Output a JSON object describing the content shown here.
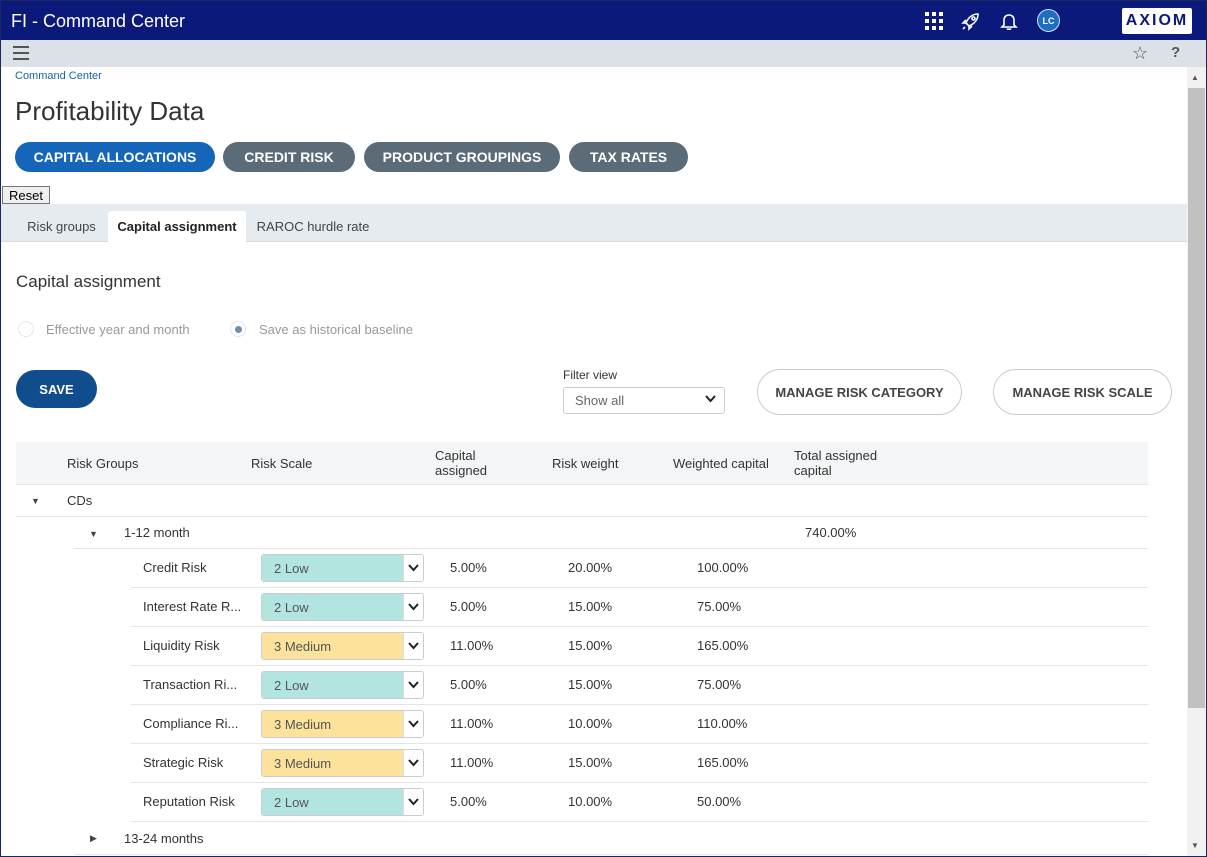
{
  "app": {
    "title": "FI - Command Center",
    "logo": "AXIOM",
    "avatar_initials": "LC"
  },
  "topbar_icons": [
    "apps-grid-icon",
    "rocket-icon",
    "bell-icon"
  ],
  "subbar_icons": [
    "menu-icon",
    "star-icon",
    "help-icon"
  ],
  "breadcrumb": "Command Center",
  "page_title": "Profitability Data",
  "pills": [
    {
      "label": "CAPITAL ALLOCATIONS",
      "active": true
    },
    {
      "label": "CREDIT RISK",
      "active": false
    },
    {
      "label": "PRODUCT GROUPINGS",
      "active": false
    },
    {
      "label": "TAX RATES",
      "active": false
    }
  ],
  "reset_label": "Reset",
  "tabs": [
    {
      "label": "Risk groups",
      "active": false
    },
    {
      "label": "Capital assignment",
      "active": true
    },
    {
      "label": "RAROC hurdle rate",
      "active": false
    }
  ],
  "section_title": "Capital assignment",
  "radios": [
    {
      "label": "Effective year and month",
      "checked": false
    },
    {
      "label": "Save as historical baseline",
      "checked": true
    }
  ],
  "save_label": "SAVE",
  "filter": {
    "label": "Filter view",
    "value": "Show all"
  },
  "buttons": {
    "manage_category": "MANAGE RISK CATEGORY",
    "manage_scale": "MANAGE RISK SCALE"
  },
  "colors": {
    "low": "#b3e5e0",
    "medium": "#fde29b",
    "accent": "#1565b8"
  },
  "grid": {
    "headers": {
      "risk_groups": "Risk Groups",
      "risk_scale": "Risk Scale",
      "capital_assigned_1": "Capital",
      "capital_assigned_2": "assigned",
      "risk_weight": "Risk weight",
      "weighted_capital": "Weighted capital",
      "total_assigned_1": "Total assigned",
      "total_assigned_2": "capital"
    },
    "group": "CDs",
    "subgroup": {
      "label": "1-12 month",
      "total": "740.00%"
    },
    "rows": [
      {
        "name": "Credit Risk",
        "scale": "2 Low",
        "level": "low",
        "capital": "5.00%",
        "weight": "20.00%",
        "weighted": "100.00%"
      },
      {
        "name": "Interest Rate R...",
        "scale": "2 Low",
        "level": "low",
        "capital": "5.00%",
        "weight": "15.00%",
        "weighted": "75.00%"
      },
      {
        "name": "Liquidity Risk",
        "scale": "3 Medium",
        "level": "medium",
        "capital": "11.00%",
        "weight": "15.00%",
        "weighted": "165.00%"
      },
      {
        "name": "Transaction Ri...",
        "scale": "2 Low",
        "level": "low",
        "capital": "5.00%",
        "weight": "15.00%",
        "weighted": "75.00%"
      },
      {
        "name": "Compliance Ri...",
        "scale": "3 Medium",
        "level": "medium",
        "capital": "11.00%",
        "weight": "10.00%",
        "weighted": "110.00%"
      },
      {
        "name": "Strategic Risk",
        "scale": "3 Medium",
        "level": "medium",
        "capital": "11.00%",
        "weight": "15.00%",
        "weighted": "165.00%"
      },
      {
        "name": "Reputation Risk",
        "scale": "2 Low",
        "level": "low",
        "capital": "5.00%",
        "weight": "10.00%",
        "weighted": "50.00%"
      }
    ],
    "next_subgroup": "13-24 months"
  }
}
